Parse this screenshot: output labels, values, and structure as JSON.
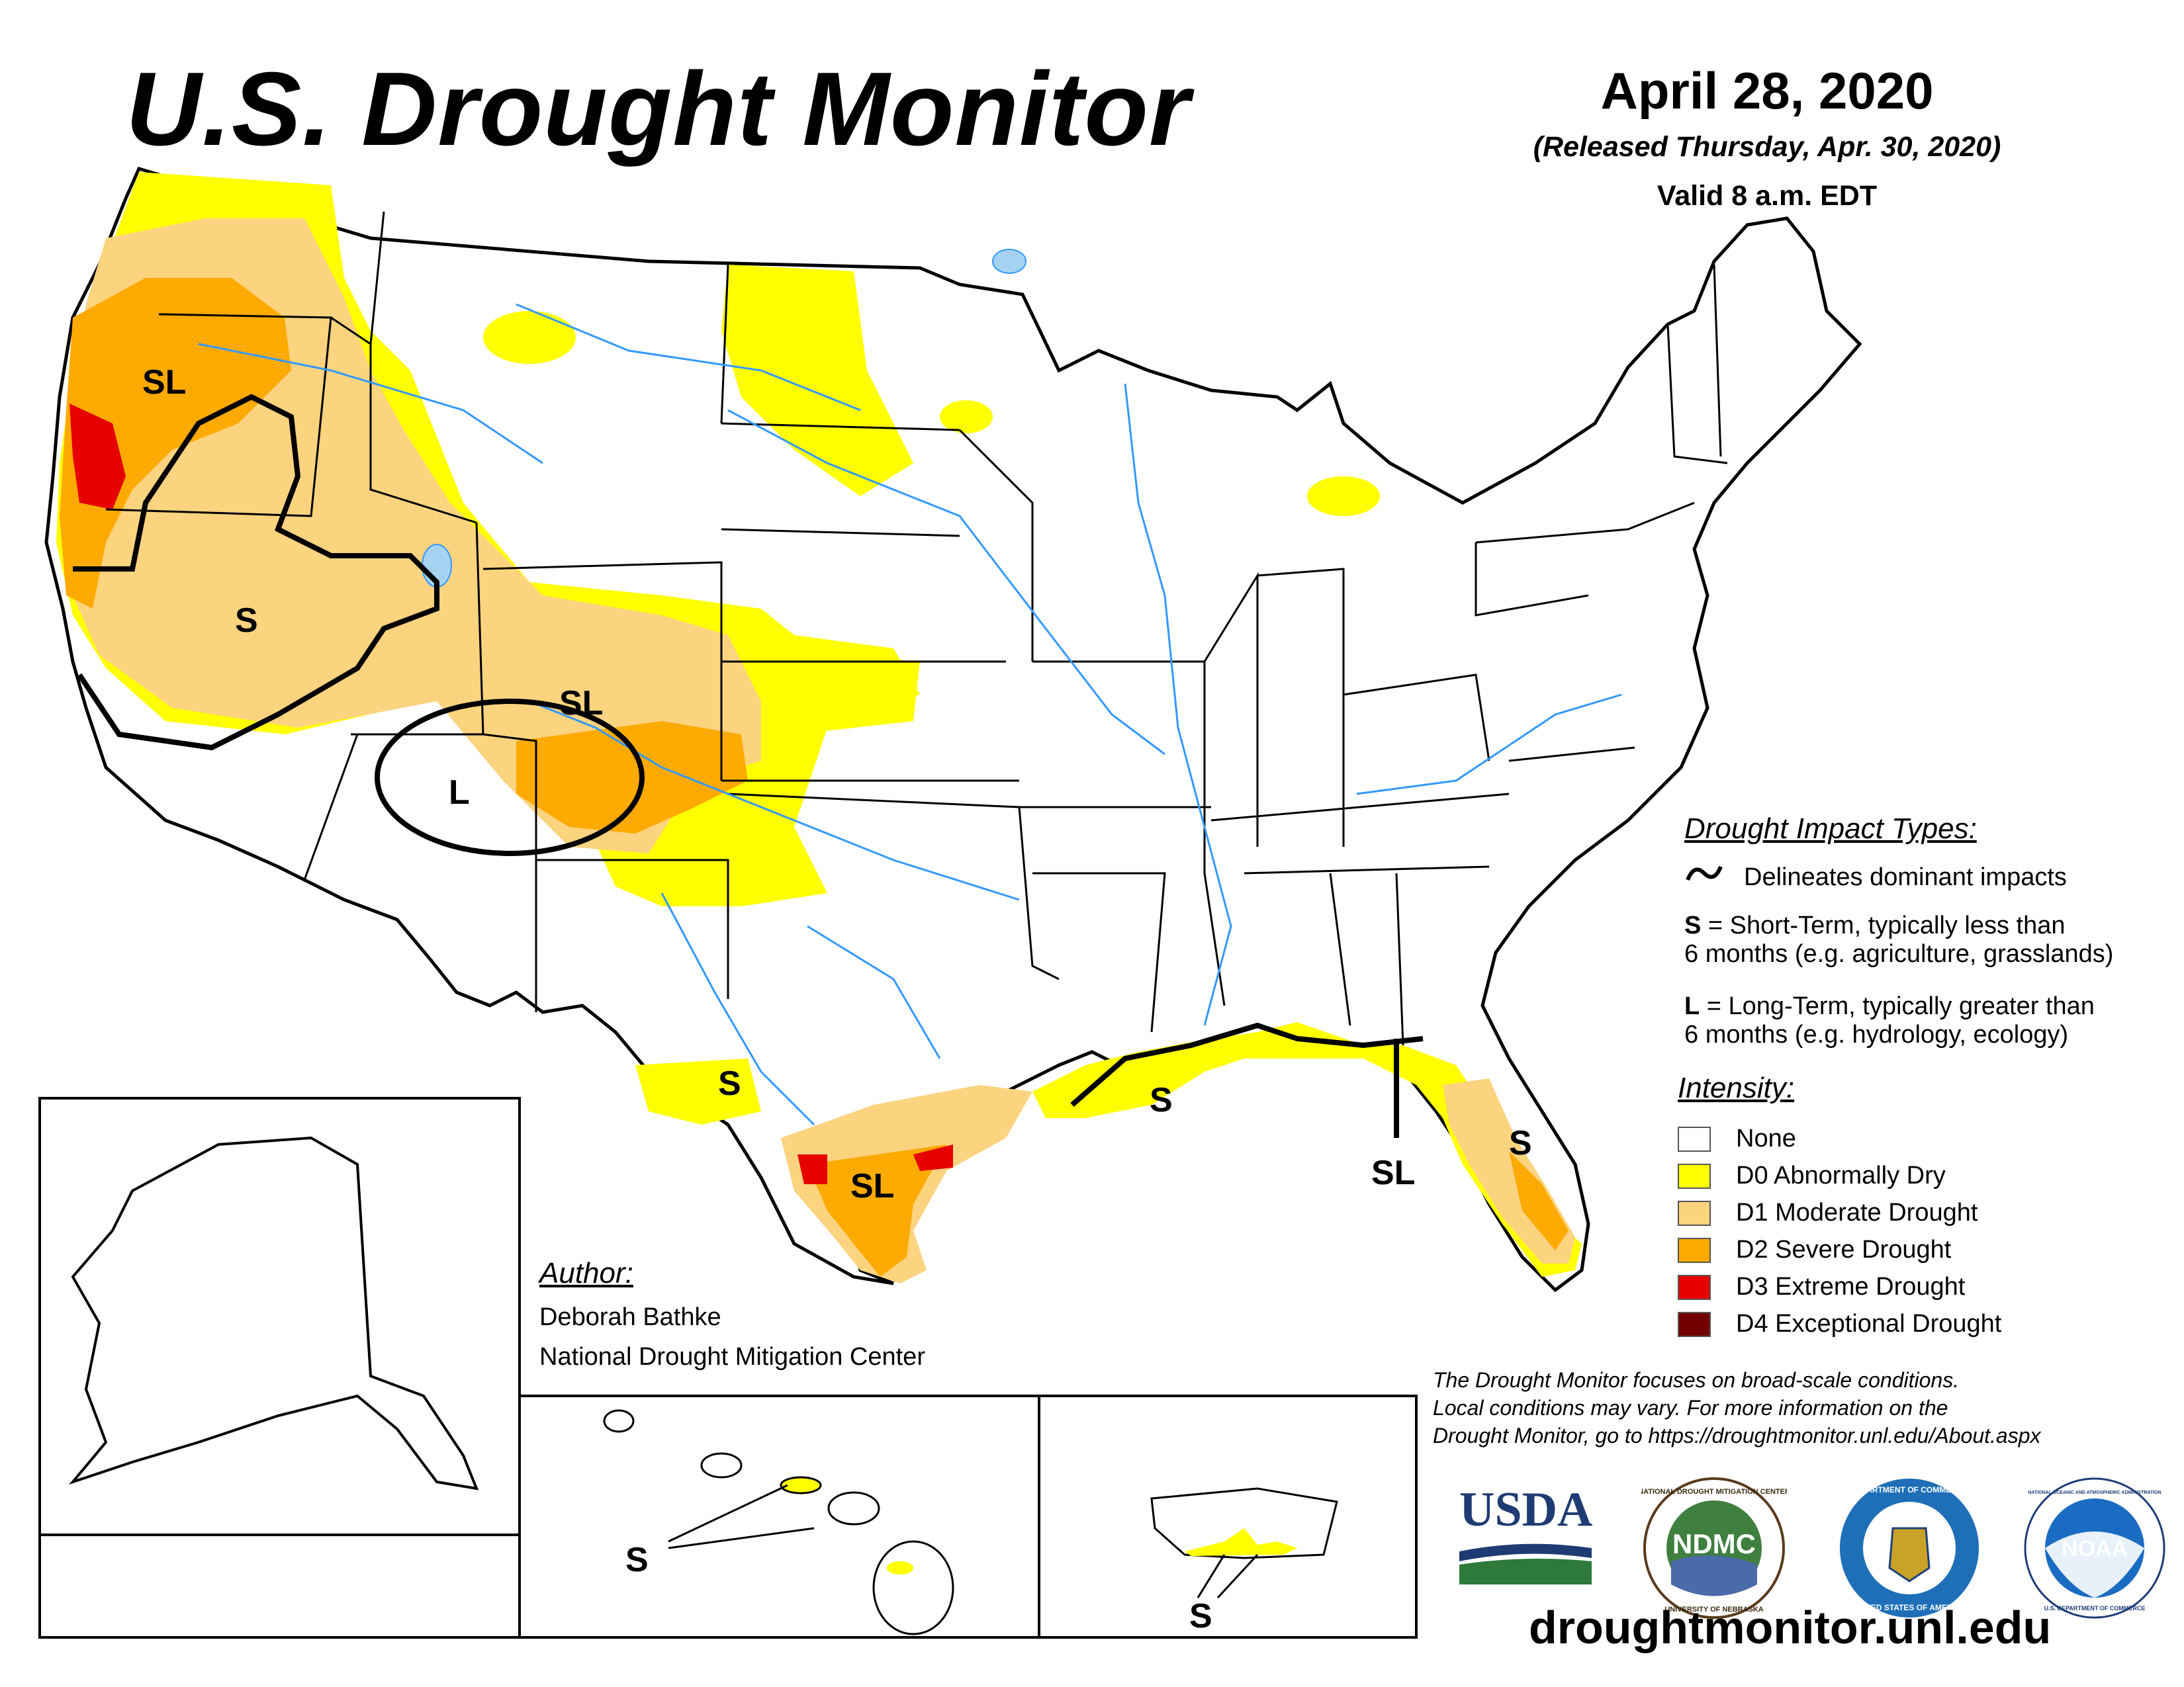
{
  "header": {
    "title": "U.S. Drought Monitor",
    "date": "April 28, 2020",
    "released": "(Released Thursday, Apr. 30, 2020)",
    "valid": "Valid 8 a.m. EDT"
  },
  "map_labels": {
    "pacific_nw": "SL",
    "great_basin": "S",
    "four_corners": "L",
    "colorado": "SL",
    "west_texas": "S",
    "south_texas": "SL",
    "gulf_coast": "S",
    "florida_panhandle": "SL",
    "florida": "S",
    "hawaii": "S",
    "puerto_rico": "S"
  },
  "impact_legend": {
    "title": "Drought Impact Types:",
    "delineates": "Delineates dominant impacts",
    "short_term_key": "S",
    "short_term_line1": " = Short-Term, typically less than",
    "short_term_line2": "6 months (e.g. agriculture, grasslands)",
    "long_term_key": "L",
    "long_term_line1": " = Long-Term, typically greater than",
    "long_term_line2": "6 months (e.g. hydrology, ecology)"
  },
  "intensity_legend": {
    "title": "Intensity:",
    "items": [
      {
        "label": "None",
        "color": "#ffffff"
      },
      {
        "label": "D0 Abnormally Dry",
        "color": "#ffff00"
      },
      {
        "label": "D1 Moderate Drought",
        "color": "#fcd37f"
      },
      {
        "label": "D2 Severe Drought",
        "color": "#ffaa00"
      },
      {
        "label": "D3 Extreme Drought",
        "color": "#e60000"
      },
      {
        "label": "D4 Exceptional Drought",
        "color": "#730000"
      }
    ]
  },
  "author": {
    "title": "Author:",
    "name": "Deborah Bathke",
    "org": "National Drought Mitigation Center"
  },
  "note": {
    "line1": "The Drought Monitor focuses on broad-scale conditions.",
    "line2": "Local conditions may vary. For more information on the",
    "line3": "Drought Monitor, go to https://droughtmonitor.unl.edu/About.aspx"
  },
  "logos": {
    "usda": "USDA",
    "ndmc": "NDMC",
    "ndmc_ring_top": "NATIONAL DROUGHT MITIGATION CENTER",
    "ndmc_ring_bottom": "UNIVERSITY OF NEBRASKA",
    "commerce_ring_top": "DEPARTMENT OF COMMERCE",
    "commerce_ring_bottom": "UNITED STATES OF AMERICA",
    "noaa": "NOAA",
    "noaa_ring_top": "NATIONAL OCEANIC AND ATMOSPHERIC ADMINISTRATION",
    "noaa_ring_bottom": "U.S. DEPARTMENT OF COMMERCE"
  },
  "website": "droughtmonitor.unl.edu",
  "colors": {
    "d0": "#ffff00",
    "d1": "#fcd37f",
    "d2": "#ffaa00",
    "d3": "#e60000",
    "d4": "#730000",
    "water": "#3399ff",
    "lake": "#a6d2f2"
  }
}
